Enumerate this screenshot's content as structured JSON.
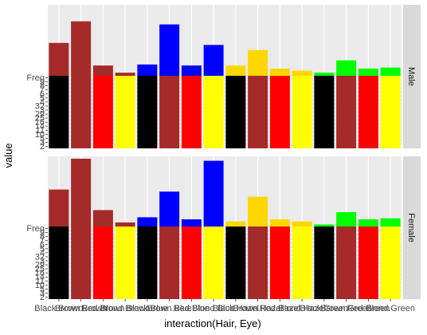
{
  "chart_data": {
    "type": "bar",
    "xlabel": "interaction(Hair, Eye)",
    "ylabel": "value",
    "x_tick_labels": [
      "Black.Brown",
      "Brown.Brown",
      "Red.Brown",
      "Blond.Brown",
      "Black.Blue",
      "Brown.Blue",
      "Red.Blue",
      "Blond.Blue",
      "Black.Hazel",
      "Brown.Hazel",
      "Red.Hazel",
      "Blond.Hazel",
      "Black.Green",
      "Brown.Green",
      "Red.Green",
      "Blond.Green"
    ],
    "y_tick_labels": [
      "Freq",
      "9",
      "8",
      "7",
      "6",
      "5",
      "4",
      "32",
      "3",
      "29",
      "25",
      "16",
      "14",
      "11",
      "10",
      "5",
      "3",
      "2"
    ],
    "colors": {
      "Black": "#000000",
      "Brown": "#a52a2a",
      "Red": "#ff0000",
      "Blond": "#ffff00",
      "Blue": "#0000ff",
      "Hazel": "#ffd700",
      "Green": "#00ff00"
    },
    "panels": [
      {
        "strip": "Male",
        "bars": [
          {
            "category": "Black.Brown",
            "eye": "Brown",
            "hair": "Black",
            "freq": 32
          },
          {
            "category": "Brown.Brown",
            "eye": "Brown",
            "hair": "Brown",
            "freq": 53
          },
          {
            "category": "Red.Brown",
            "eye": "Brown",
            "hair": "Red",
            "freq": 10
          },
          {
            "category": "Blond.Brown",
            "eye": "Brown",
            "hair": "Blond",
            "freq": 3
          },
          {
            "category": "Black.Blue",
            "eye": "Blue",
            "hair": "Black",
            "freq": 11
          },
          {
            "category": "Brown.Blue",
            "eye": "Blue",
            "hair": "Brown",
            "freq": 50
          },
          {
            "category": "Red.Blue",
            "eye": "Blue",
            "hair": "Red",
            "freq": 10
          },
          {
            "category": "Blond.Blue",
            "eye": "Blue",
            "hair": "Blond",
            "freq": 30
          },
          {
            "category": "Black.Hazel",
            "eye": "Hazel",
            "hair": "Black",
            "freq": 10
          },
          {
            "category": "Brown.Hazel",
            "eye": "Hazel",
            "hair": "Brown",
            "freq": 25
          },
          {
            "category": "Red.Hazel",
            "eye": "Hazel",
            "hair": "Red",
            "freq": 7
          },
          {
            "category": "Blond.Hazel",
            "eye": "Hazel",
            "hair": "Blond",
            "freq": 5
          },
          {
            "category": "Black.Green",
            "eye": "Green",
            "hair": "Black",
            "freq": 3
          },
          {
            "category": "Brown.Green",
            "eye": "Green",
            "hair": "Brown",
            "freq": 15
          },
          {
            "category": "Red.Green",
            "eye": "Green",
            "hair": "Red",
            "freq": 7
          },
          {
            "category": "Blond.Green",
            "eye": "Green",
            "hair": "Blond",
            "freq": 8
          }
        ]
      },
      {
        "strip": "Female",
        "bars": [
          {
            "category": "Black.Brown",
            "eye": "Brown",
            "hair": "Black",
            "freq": 36
          },
          {
            "category": "Brown.Brown",
            "eye": "Brown",
            "hair": "Brown",
            "freq": 66
          },
          {
            "category": "Red.Brown",
            "eye": "Brown",
            "hair": "Red",
            "freq": 16
          },
          {
            "category": "Blond.Brown",
            "eye": "Brown",
            "hair": "Blond",
            "freq": 4
          },
          {
            "category": "Black.Blue",
            "eye": "Blue",
            "hair": "Black",
            "freq": 9
          },
          {
            "category": "Brown.Blue",
            "eye": "Blue",
            "hair": "Brown",
            "freq": 34
          },
          {
            "category": "Red.Blue",
            "eye": "Blue",
            "hair": "Red",
            "freq": 7
          },
          {
            "category": "Blond.Blue",
            "eye": "Blue",
            "hair": "Blond",
            "freq": 64
          },
          {
            "category": "Black.Hazel",
            "eye": "Hazel",
            "hair": "Black",
            "freq": 5
          },
          {
            "category": "Brown.Hazel",
            "eye": "Hazel",
            "hair": "Brown",
            "freq": 29
          },
          {
            "category": "Red.Hazel",
            "eye": "Hazel",
            "hair": "Red",
            "freq": 7
          },
          {
            "category": "Blond.Hazel",
            "eye": "Hazel",
            "hair": "Blond",
            "freq": 5
          },
          {
            "category": "Black.Green",
            "eye": "Green",
            "hair": "Black",
            "freq": 2
          },
          {
            "category": "Brown.Green",
            "eye": "Green",
            "hair": "Brown",
            "freq": 14
          },
          {
            "category": "Red.Green",
            "eye": "Green",
            "hair": "Red",
            "freq": 7
          },
          {
            "category": "Blond.Green",
            "eye": "Green",
            "hair": "Blond",
            "freq": 8
          }
        ]
      }
    ]
  }
}
